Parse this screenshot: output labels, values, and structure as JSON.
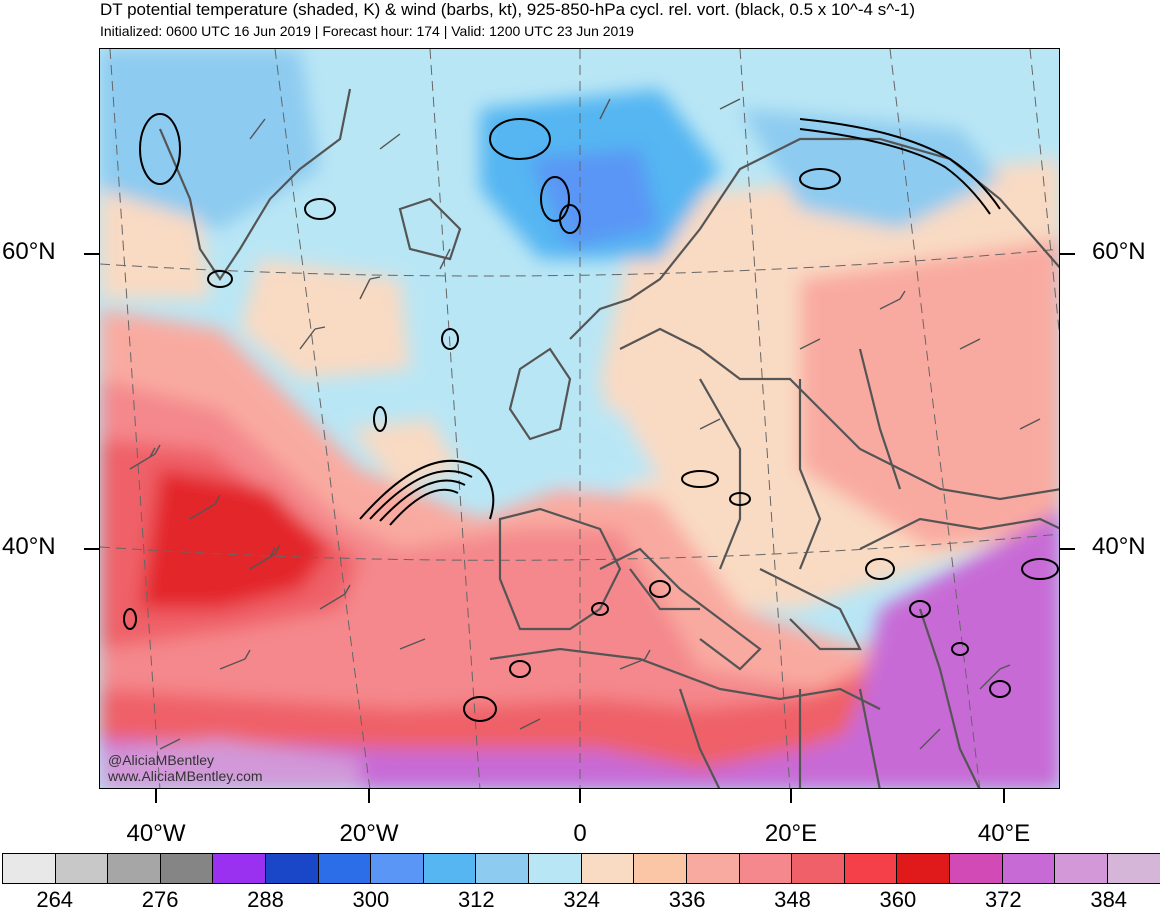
{
  "header": {
    "title": "DT potential temperature (shaded, K) & wind (barbs, kt), 925-850-hPa cycl. rel. vort. (black, 0.5 x 10^-4 s^-1)",
    "subtitle": "Initialized: 0600 UTC 16 Jun 2019 | Forecast hour: 174 | Valid: 1200 UTC 23 Jun 2019"
  },
  "map": {
    "lat_labels": [
      "60°N",
      "40°N"
    ],
    "lon_labels": [
      "40°W",
      "20°W",
      "0",
      "20°E",
      "40°E"
    ],
    "watermark_handle": "@AliciaMBentley",
    "watermark_url": "www.AliciaMBentley.com"
  },
  "colorbar": {
    "colors": [
      "#e8e8e8",
      "#c8c8c8",
      "#a6a6a6",
      "#858585",
      "#9a30f0",
      "#1a46c8",
      "#2c6ee8",
      "#5a96f5",
      "#55b6f2",
      "#8dcbf0",
      "#b9e6f5",
      "#f9dac3",
      "#fbc6a6",
      "#f9aaa0",
      "#f4888c",
      "#ef6068",
      "#f5404a",
      "#e01a1a",
      "#d24ab6",
      "#c86ad6",
      "#d298d8",
      "#d6b6d8"
    ],
    "labels": [
      "264",
      "276",
      "288",
      "300",
      "312",
      "324",
      "336",
      "348",
      "360",
      "372",
      "384"
    ]
  }
}
